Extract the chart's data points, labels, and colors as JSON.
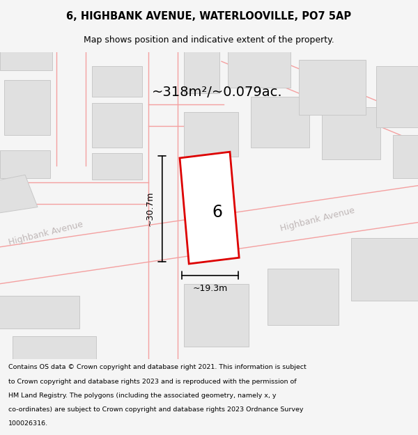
{
  "title_line1": "6, HIGHBANK AVENUE, WATERLOOVILLE, PO7 5AP",
  "title_line2": "Map shows position and indicative extent of the property.",
  "area_text": "~318m²/~0.079ac.",
  "label_number": "6",
  "dim_width": "~19.3m",
  "dim_height": "~30.7m",
  "street_label1": "Highbank Avenue",
  "street_label2": "Highbank Avenue",
  "footer_lines": [
    "Contains OS data © Crown copyright and database right 2021. This information is subject",
    "to Crown copyright and database rights 2023 and is reproduced with the permission of",
    "HM Land Registry. The polygons (including the associated geometry, namely x, y",
    "co-ordinates) are subject to Crown copyright and database rights 2023 Ordnance Survey",
    "100026316."
  ],
  "bg_color": "#f5f5f5",
  "map_bg": "#ffffff",
  "building_color": "#e0e0e0",
  "building_edge_color": "#c8c8c8",
  "pink_road_color": "#f4a0a0",
  "plot_color": "#ffffff",
  "plot_edge_color": "#dd0000",
  "dim_line_color": "#000000",
  "title_color": "#000000",
  "footer_color": "#000000",
  "street_text_color": "#c0b8b8"
}
